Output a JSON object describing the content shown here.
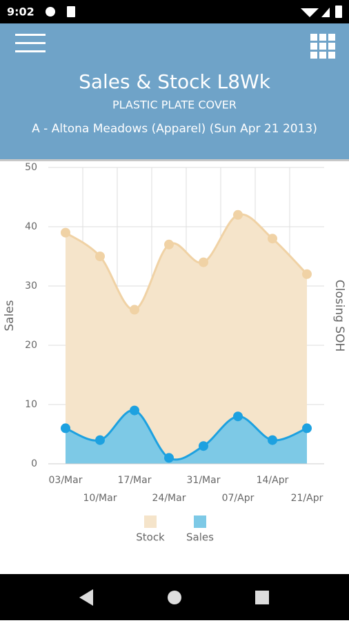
{
  "status_bar": {
    "time": "9:02"
  },
  "header": {
    "title": "Sales & Stock L8Wk",
    "subtitle": "PLASTIC PLATE COVER",
    "info": "A - Altona Meadows (Apparel) (Sun Apr 21 2013)"
  },
  "chart_data": {
    "type": "area",
    "categories": [
      "03/Mar",
      "10/Mar",
      "17/Mar",
      "24/Mar",
      "31/Mar",
      "07/Apr",
      "14/Apr",
      "21/Apr"
    ],
    "series": [
      {
        "name": "Stock",
        "color": "#f0d2a5",
        "values": [
          39,
          35,
          26,
          37,
          34,
          42,
          38,
          32
        ]
      },
      {
        "name": "Sales",
        "color": "#1da1e0",
        "values": [
          6,
          4,
          9,
          1,
          3,
          8,
          4,
          6
        ]
      }
    ],
    "ylim": [
      0,
      50
    ],
    "yticks": [
      0,
      10,
      20,
      30,
      40,
      50
    ],
    "y_label": "Sales",
    "y2_label": "Closing SOH",
    "grid": true
  }
}
